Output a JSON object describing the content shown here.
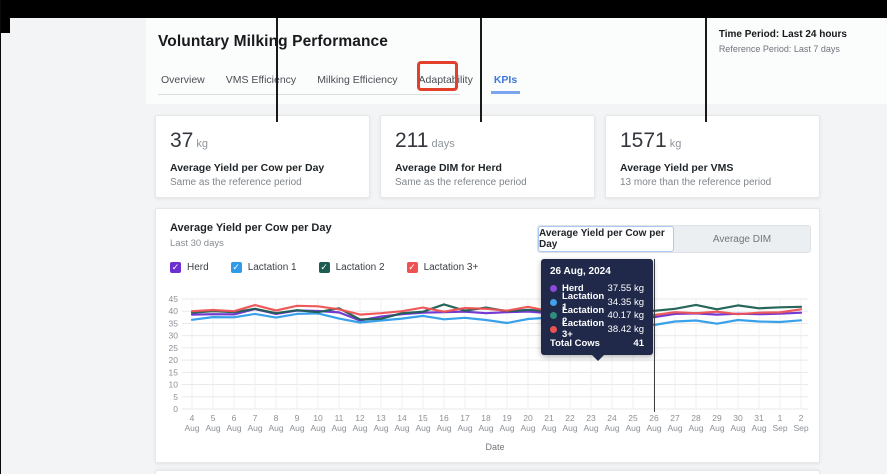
{
  "header": {
    "title": "Voluntary Milking Performance",
    "time_period": "Time Period: Last 24 hours",
    "reference_period": "Reference Period: Last 7 days"
  },
  "tabs": [
    {
      "label": "Overview",
      "active": false
    },
    {
      "label": "VMS Efficiency",
      "active": false
    },
    {
      "label": "Milking Efficiency",
      "active": false
    },
    {
      "label": "Adaptability",
      "active": false
    },
    {
      "label": "KPIs",
      "active": true,
      "highlighted": true
    }
  ],
  "kpi_cards": [
    {
      "value": "37",
      "unit": "kg",
      "label": "Average Yield per Cow per Day",
      "sub": "Same as the reference period"
    },
    {
      "value": "211",
      "unit": "days",
      "label": "Average DIM for Herd",
      "sub": "Same as the reference period"
    },
    {
      "value": "1571",
      "unit": "kg",
      "label": "Average Yield per VMS",
      "sub": "13 more than the reference period"
    }
  ],
  "chart_card": {
    "title": "Average Yield per Cow per Day",
    "subtitle": "Last 30 days",
    "toggle": [
      {
        "label": "Average Yield per Cow per Day",
        "active": true
      },
      {
        "label": "Average DIM",
        "active": false
      }
    ],
    "legend": [
      {
        "label": "Herd",
        "color": "#6d2fd0",
        "checked": true
      },
      {
        "label": "Lactation 1",
        "color": "#2e9ce8",
        "checked": true
      },
      {
        "label": "Lactation 2",
        "color": "#1b5e51",
        "checked": true
      },
      {
        "label": "Lactation 3+",
        "color": "#ee5253",
        "checked": true
      }
    ]
  },
  "tooltip": {
    "title": "26 Aug, 2024",
    "rows": [
      {
        "label": "Herd",
        "value": "37.55 kg",
        "color": "#8a4bdc"
      },
      {
        "label": "Lactation 1",
        "value": "34.35 kg",
        "color": "#41a0e8"
      },
      {
        "label": "Lactation 2",
        "value": "40.17 kg",
        "color": "#2f8d7c"
      },
      {
        "label": "Lactation 3+",
        "value": "38.42 kg",
        "color": "#ee5253"
      }
    ],
    "total_label": "Total Cows",
    "total_value": "41"
  },
  "chart_data": {
    "type": "line",
    "title": "Average Yield per Cow per Day",
    "xlabel": "Date",
    "ylabel": "",
    "ylim": [
      0,
      45
    ],
    "yticks": [
      0,
      5,
      10,
      15,
      20,
      25,
      30,
      35,
      40,
      45
    ],
    "grid": true,
    "legend_position": "top-left",
    "hover_index": 22,
    "x": [
      "4 Aug",
      "5 Aug",
      "6 Aug",
      "7 Aug",
      "8 Aug",
      "9 Aug",
      "10 Aug",
      "11 Aug",
      "12 Aug",
      "13 Aug",
      "14 Aug",
      "15 Aug",
      "16 Aug",
      "17 Aug",
      "18 Aug",
      "19 Aug",
      "20 Aug",
      "21 Aug",
      "22 Aug",
      "23 Aug",
      "24 Aug",
      "25 Aug",
      "26 Aug",
      "27 Aug",
      "28 Aug",
      "29 Aug",
      "30 Aug",
      "31 Aug",
      "1 Sep",
      "2 Sep"
    ],
    "series": [
      {
        "name": "Herd",
        "color": "#6d2fd0",
        "values": [
          38.6,
          38.8,
          38.7,
          40.9,
          38.9,
          40.3,
          40.1,
          39.5,
          36.2,
          37.8,
          38.8,
          39.4,
          39.6,
          39.8,
          39.2,
          39.6,
          39.9,
          39.2,
          38.4,
          39.3,
          38.8,
          39.0,
          37.55,
          38.9,
          39.1,
          38.6,
          39.0,
          38.8,
          39.0,
          39.4
        ]
      },
      {
        "name": "Lactation 1",
        "color": "#2e9ce8",
        "values": [
          36.5,
          37.6,
          37.5,
          38.9,
          37.4,
          38.9,
          39.1,
          37.0,
          35.4,
          36.2,
          37.0,
          38.1,
          36.7,
          37.3,
          36.4,
          35.2,
          36.8,
          37.4,
          36.2,
          35.8,
          37.0,
          37.4,
          34.35,
          35.8,
          36.2,
          34.9,
          36.4,
          35.8,
          35.6,
          36.3
        ]
      },
      {
        "name": "Lactation 2",
        "color": "#1b5e51",
        "values": [
          39.4,
          40.0,
          39.6,
          41.0,
          39.2,
          40.4,
          39.6,
          41.2,
          36.6,
          36.9,
          39.2,
          39.8,
          42.8,
          40.2,
          41.5,
          40.0,
          40.6,
          40.0,
          39.0,
          40.8,
          40.2,
          41.6,
          40.17,
          41.0,
          42.6,
          40.8,
          42.4,
          41.2,
          41.6,
          41.8
        ]
      },
      {
        "name": "Lactation 3+",
        "color": "#ee5253",
        "values": [
          40.0,
          40.5,
          40.0,
          42.5,
          40.3,
          42.2,
          42.0,
          40.8,
          38.6,
          39.2,
          40.0,
          41.5,
          39.8,
          41.3,
          41.0,
          40.2,
          41.8,
          40.0,
          39.3,
          40.8,
          39.6,
          40.9,
          38.42,
          39.6,
          39.2,
          39.8,
          38.8,
          39.4,
          39.5,
          40.8
        ]
      }
    ]
  }
}
